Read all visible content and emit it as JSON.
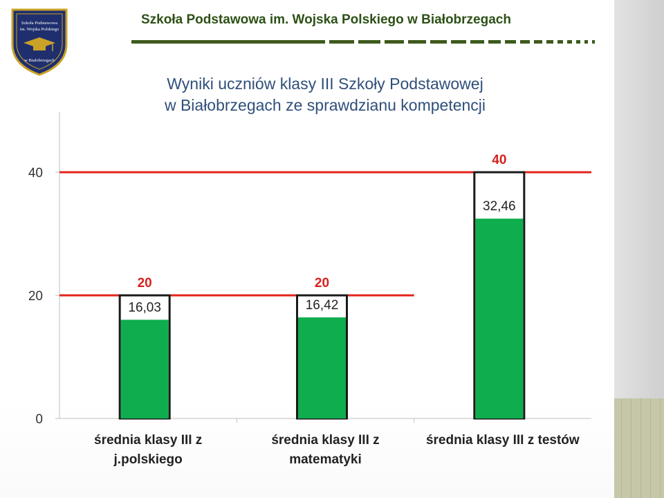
{
  "header": {
    "school_name": "Szkoła Podstawowa im. Wojska Polskiego w Białobrzegach",
    "logo_text": [
      "Szkoła Podstawowa",
      "im. Wojska Polskiego",
      "w Białobrzegach"
    ]
  },
  "title_lines": [
    "Wyniki uczniów klasy III Szkoły Podstawowej",
    "w Białobrzegach ze sprawdzianu kompetencji"
  ],
  "colors": {
    "bar_fill": "#0fad4e",
    "max_line": "#e3241b",
    "bar_outline": "#1a1a1a",
    "header_text": "#2d5016",
    "title_text": "#2f4f7a"
  },
  "chart_data": {
    "type": "bar",
    "categories": [
      [
        "średnia klasy III z",
        "j.polskiego"
      ],
      [
        "średnia klasy III z",
        "matematyki"
      ],
      [
        "średnia klasy III z testów"
      ]
    ],
    "values": [
      16.03,
      16.42,
      32.46
    ],
    "value_labels": [
      "16,03",
      "16,42",
      "32,46"
    ],
    "max_points": [
      20,
      20,
      40
    ],
    "max_labels": [
      "20",
      "20",
      "40"
    ],
    "ylim": [
      0,
      40
    ],
    "yticks": [
      0,
      20,
      40
    ],
    "ytick_labels": [
      "0",
      "20",
      "40"
    ],
    "title": "",
    "xlabel": "",
    "ylabel": "",
    "grid": false,
    "legend": "none"
  }
}
